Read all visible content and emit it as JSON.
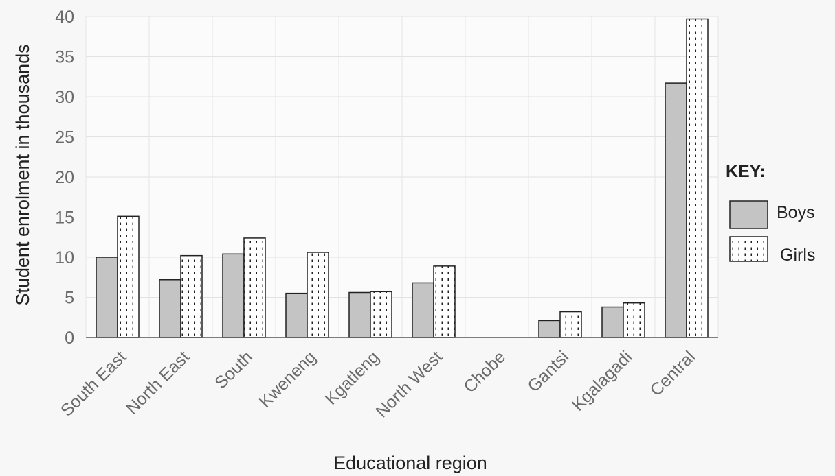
{
  "chart_data": {
    "type": "bar",
    "categories": [
      "South East",
      "North East",
      "South",
      "Kweneng",
      "Kgatleng",
      "North West",
      "Chobe",
      "Gantsi",
      "Kgalagadi",
      "Central"
    ],
    "series": [
      {
        "name": "Boys",
        "values": [
          10,
          7.2,
          10.4,
          5.5,
          5.6,
          6.8,
          0,
          2.1,
          3.8,
          31.7
        ],
        "color": "#c4c4c4",
        "pattern": "solid"
      },
      {
        "name": "Girls",
        "values": [
          15.1,
          10.2,
          12.4,
          10.6,
          5.7,
          8.9,
          0,
          3.2,
          4.3,
          39.7
        ],
        "color": "#ffffff",
        "pattern": "dotted"
      }
    ],
    "xlabel": "Educational region",
    "ylabel": "Student enrolment in thousands",
    "ylim": [
      0,
      40
    ],
    "yticks": [
      0,
      5,
      10,
      15,
      20,
      25,
      30,
      35,
      40
    ],
    "grid": true,
    "legend_title": "KEY:",
    "legend_position": "right"
  }
}
